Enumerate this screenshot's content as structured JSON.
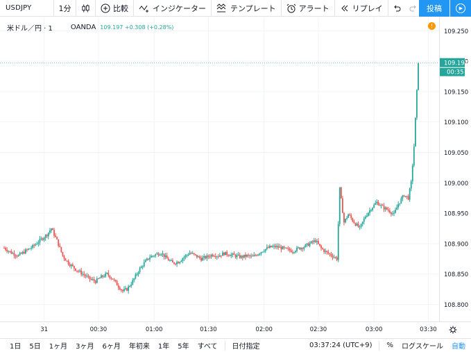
{
  "toolbar": {
    "symbol": "USDJPY",
    "interval": "1分",
    "compare_label": "比較",
    "indicators_label": "インジケーター",
    "templates_label": "テンプレート",
    "alert_label": "アラート",
    "replay_label": "リプレイ",
    "publish_label": "投稿"
  },
  "legend": {
    "name": "米ドル／円 · 1",
    "source": "OANDA",
    "value": "109.197 +0.308 (+0.28%)",
    "alert_count": "!"
  },
  "chart_data": {
    "type": "candlestick",
    "symbol": "USDJPY",
    "interval": "1m",
    "y_axis_ticks": [
      "109.250",
      "109.200",
      "109.150",
      "109.100",
      "109.050",
      "109.000",
      "108.950",
      "108.900",
      "108.850",
      "108.800"
    ],
    "ylim": [
      108.772,
      109.272
    ],
    "x_axis_ticks": [
      "31",
      "00:30",
      "01:00",
      "01:30",
      "02:00",
      "02:30",
      "03:00",
      "03:30"
    ],
    "last_price_label": "109.197",
    "countdown_label": "00:35",
    "last_price": 109.197,
    "up_color": "#26a69a",
    "down_color": "#ef5350",
    "close_path": [
      [
        0,
        108.893
      ],
      [
        5,
        108.885
      ],
      [
        10,
        108.88
      ],
      [
        15,
        108.888
      ],
      [
        20,
        108.895
      ],
      [
        25,
        108.905
      ],
      [
        30,
        108.915
      ],
      [
        33,
        108.925
      ],
      [
        37,
        108.905
      ],
      [
        41,
        108.88
      ],
      [
        45,
        108.868
      ],
      [
        50,
        108.858
      ],
      [
        55,
        108.85
      ],
      [
        60,
        108.842
      ],
      [
        64,
        108.838
      ],
      [
        68,
        108.845
      ],
      [
        72,
        108.85
      ],
      [
        76,
        108.842
      ],
      [
        80,
        108.83
      ],
      [
        83,
        108.822
      ],
      [
        86,
        108.825
      ],
      [
        90,
        108.838
      ],
      [
        94,
        108.855
      ],
      [
        98,
        108.868
      ],
      [
        102,
        108.878
      ],
      [
        106,
        108.882
      ],
      [
        110,
        108.885
      ],
      [
        114,
        108.875
      ],
      [
        118,
        108.868
      ],
      [
        122,
        108.87
      ],
      [
        126,
        108.878
      ],
      [
        130,
        108.885
      ],
      [
        134,
        108.88
      ],
      [
        138,
        108.875
      ],
      [
        142,
        108.878
      ],
      [
        146,
        108.882
      ],
      [
        150,
        108.88
      ],
      [
        154,
        108.884
      ],
      [
        158,
        108.882
      ],
      [
        162,
        108.88
      ],
      [
        166,
        108.878
      ],
      [
        170,
        108.88
      ],
      [
        174,
        108.878
      ],
      [
        178,
        108.884
      ],
      [
        182,
        108.89
      ],
      [
        186,
        108.894
      ],
      [
        190,
        108.895
      ],
      [
        194,
        108.893
      ],
      [
        198,
        108.89
      ],
      [
        202,
        108.888
      ],
      [
        206,
        108.892
      ],
      [
        210,
        108.895
      ],
      [
        214,
        108.9
      ],
      [
        218,
        108.905
      ],
      [
        222,
        108.892
      ],
      [
        226,
        108.885
      ],
      [
        230,
        108.88
      ],
      [
        233,
        108.875
      ],
      [
        235,
        108.99
      ],
      [
        238,
        108.935
      ],
      [
        241,
        108.948
      ],
      [
        245,
        108.935
      ],
      [
        249,
        108.925
      ],
      [
        253,
        108.945
      ],
      [
        257,
        108.958
      ],
      [
        261,
        108.968
      ],
      [
        265,
        108.96
      ],
      [
        269,
        108.955
      ],
      [
        273,
        108.948
      ],
      [
        276,
        108.965
      ],
      [
        280,
        108.98
      ],
      [
        283,
        108.975
      ],
      [
        285,
        109.0
      ],
      [
        287,
        109.06
      ],
      [
        289,
        109.15
      ],
      [
        290,
        109.197
      ]
    ]
  },
  "bottombar": {
    "ranges": [
      "1日",
      "5日",
      "1ヶ月",
      "3ヶ月",
      "6ヶ月",
      "年初来",
      "1年",
      "5年",
      "すべて"
    ],
    "goto_date": "日付指定",
    "time": "03:37:24 (UTC+9)",
    "percent": "%",
    "log_scale": "ログスケール",
    "auto": "自動"
  }
}
